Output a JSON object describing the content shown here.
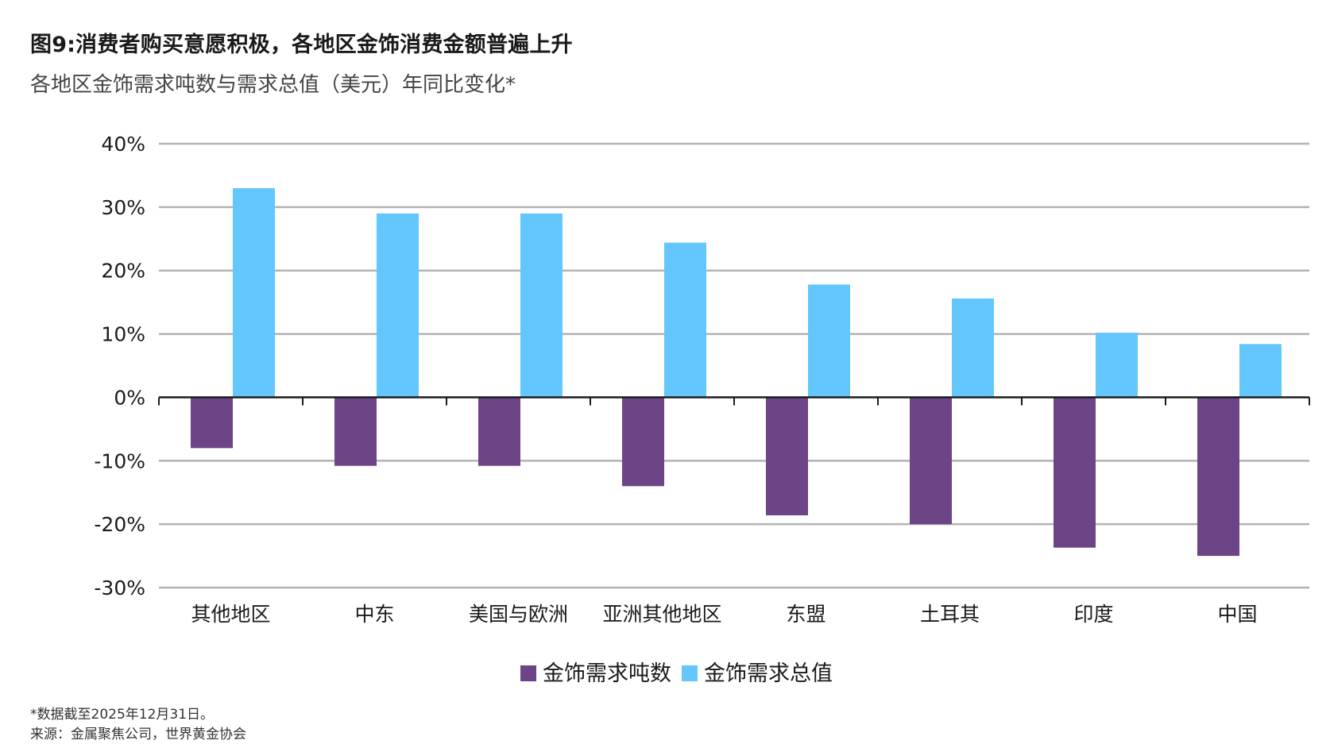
{
  "title": "图9:消费者购买意愿积极，各地区金饰消费金额普遍上升",
  "subtitle": "各地区金饰需求吨数与需求总值（美元）年同比变化*",
  "footnote": "*数据截至2025年12月31日。",
  "source": "来源：金属聚焦公司，世界黄金协会",
  "colors": {
    "tonnes": "#6d4486",
    "value": "#63c7fd",
    "grid": "#b3b3b3",
    "axis": "#1a1a1a"
  },
  "chart_data": {
    "type": "bar",
    "categories": [
      "其他地区",
      "中东",
      "美国与欧洲",
      "亚洲其他地区",
      "东盟",
      "土耳其",
      "印度",
      "中国"
    ],
    "series": [
      {
        "name": "金饰需求吨数",
        "values": [
          -8,
          -10.8,
          -10.8,
          -14,
          -18.6,
          -20,
          -23.7,
          -25
        ]
      },
      {
        "name": "金饰需求总值",
        "values": [
          33,
          29,
          29,
          24.4,
          17.8,
          15.6,
          10.2,
          8.4
        ]
      }
    ],
    "ylim": [
      -30,
      40
    ],
    "yticks": [
      "40%",
      "30%",
      "20%",
      "10%",
      "0%",
      "-10%",
      "-20%",
      "-30%"
    ],
    "ytick_values": [
      40,
      30,
      20,
      10,
      0,
      -10,
      -20,
      -30
    ],
    "grid": true,
    "legend": "bottom-center"
  }
}
